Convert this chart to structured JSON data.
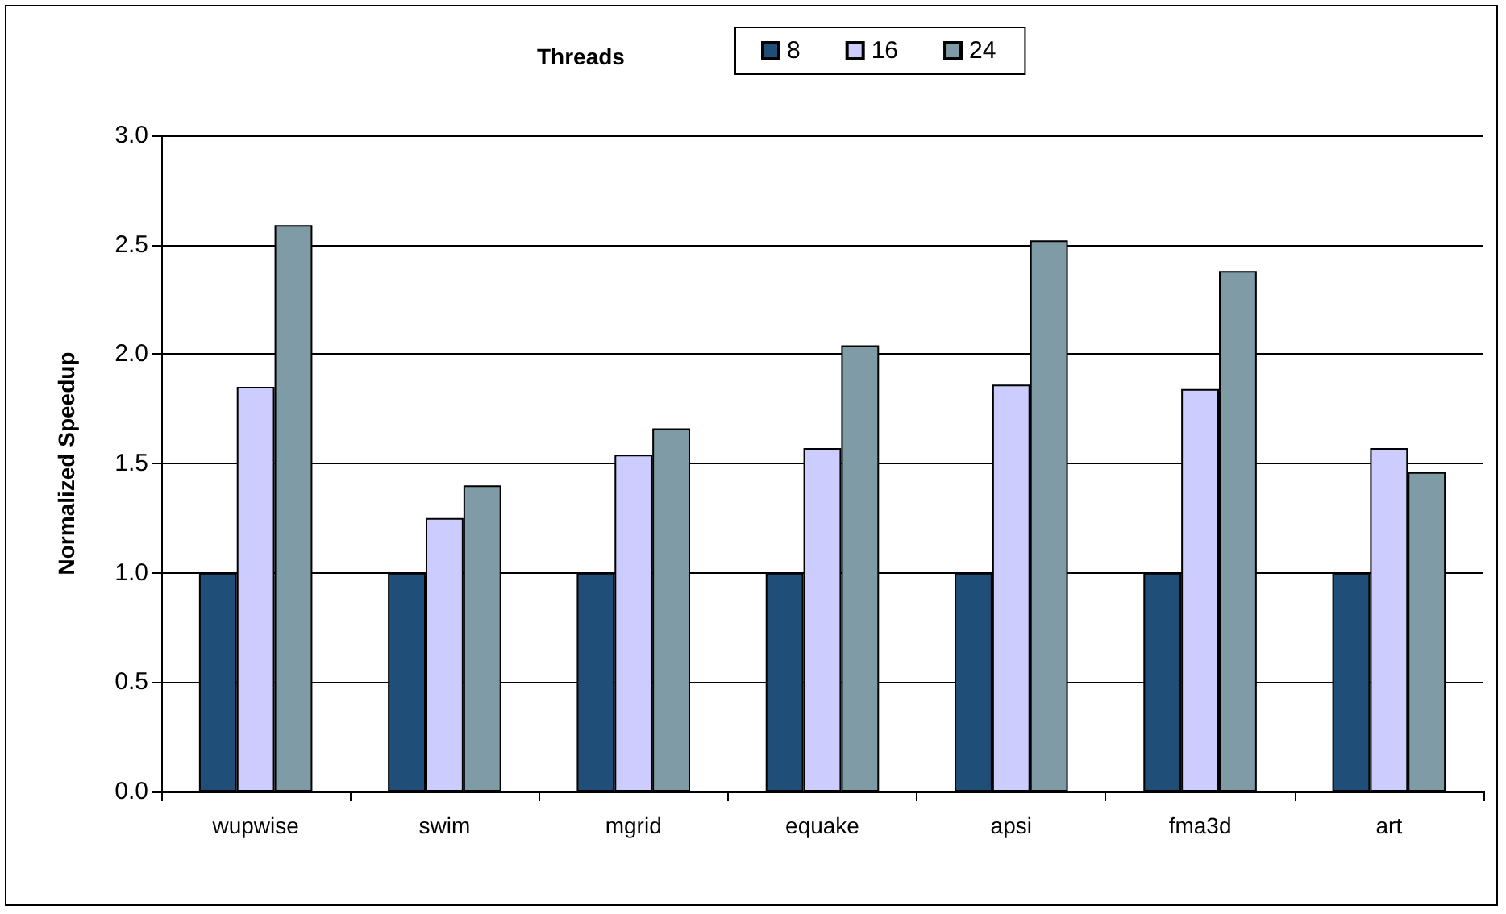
{
  "chart_data": {
    "type": "bar",
    "ylabel": "Normalized Speedup",
    "legend_title": "Threads",
    "legend": "top",
    "categories": [
      "wupwise",
      "swim",
      "mgrid",
      "equake",
      "apsi",
      "fma3d",
      "art"
    ],
    "series": [
      {
        "name": "8",
        "color": "#1f4e79",
        "values": [
          1.0,
          1.0,
          1.0,
          1.0,
          1.0,
          1.0,
          1.0
        ]
      },
      {
        "name": "16",
        "color": "#ccccff",
        "values": [
          1.85,
          1.25,
          1.54,
          1.57,
          1.86,
          1.84,
          1.57
        ]
      },
      {
        "name": "24",
        "color": "#7f9ca6",
        "values": [
          2.59,
          1.4,
          1.66,
          2.04,
          2.52,
          2.38,
          1.46
        ]
      }
    ],
    "ylim": [
      0,
      3
    ],
    "yticks": [
      {
        "value": 0,
        "label": "0.0"
      },
      0.5,
      {
        "value": 1,
        "label": "1.0"
      },
      1.5,
      {
        "value": 2,
        "label": "2.0"
      },
      2.5,
      {
        "value": 3,
        "label": "3.0"
      }
    ],
    "grid": "y"
  }
}
